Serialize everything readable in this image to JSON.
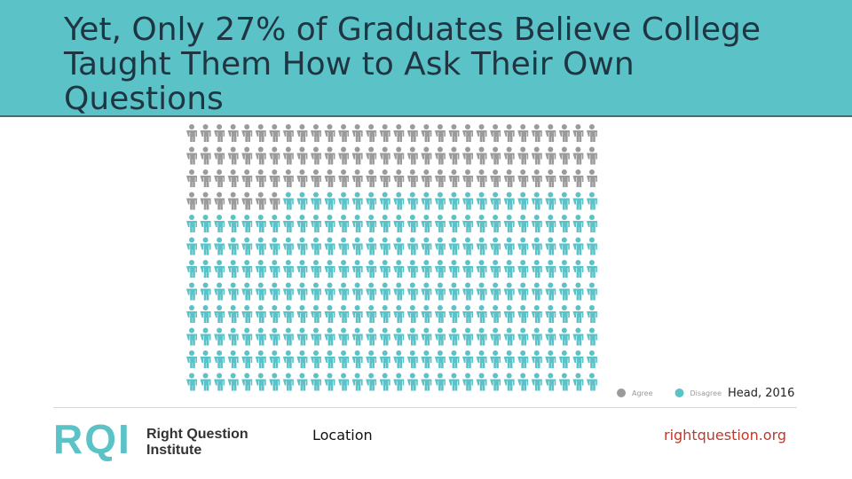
{
  "chart_data": {
    "type": "pictograph",
    "title": "Yet, Only 27% of Graduates Believe College Taught Them How to Ask Their Own Questions",
    "series": [
      {
        "name": "Agree",
        "color": "#9b9b9b",
        "values": [
          97
        ]
      },
      {
        "name": "Disagree",
        "color": "#5bc2c7",
        "values": [
          263
        ]
      }
    ],
    "source": "Head, 2016"
  },
  "footer": {
    "logo": "RQI",
    "logo_line1": "Right Question",
    "logo_line2": "Institute",
    "location": "Location",
    "website": "rightquestion.org"
  }
}
